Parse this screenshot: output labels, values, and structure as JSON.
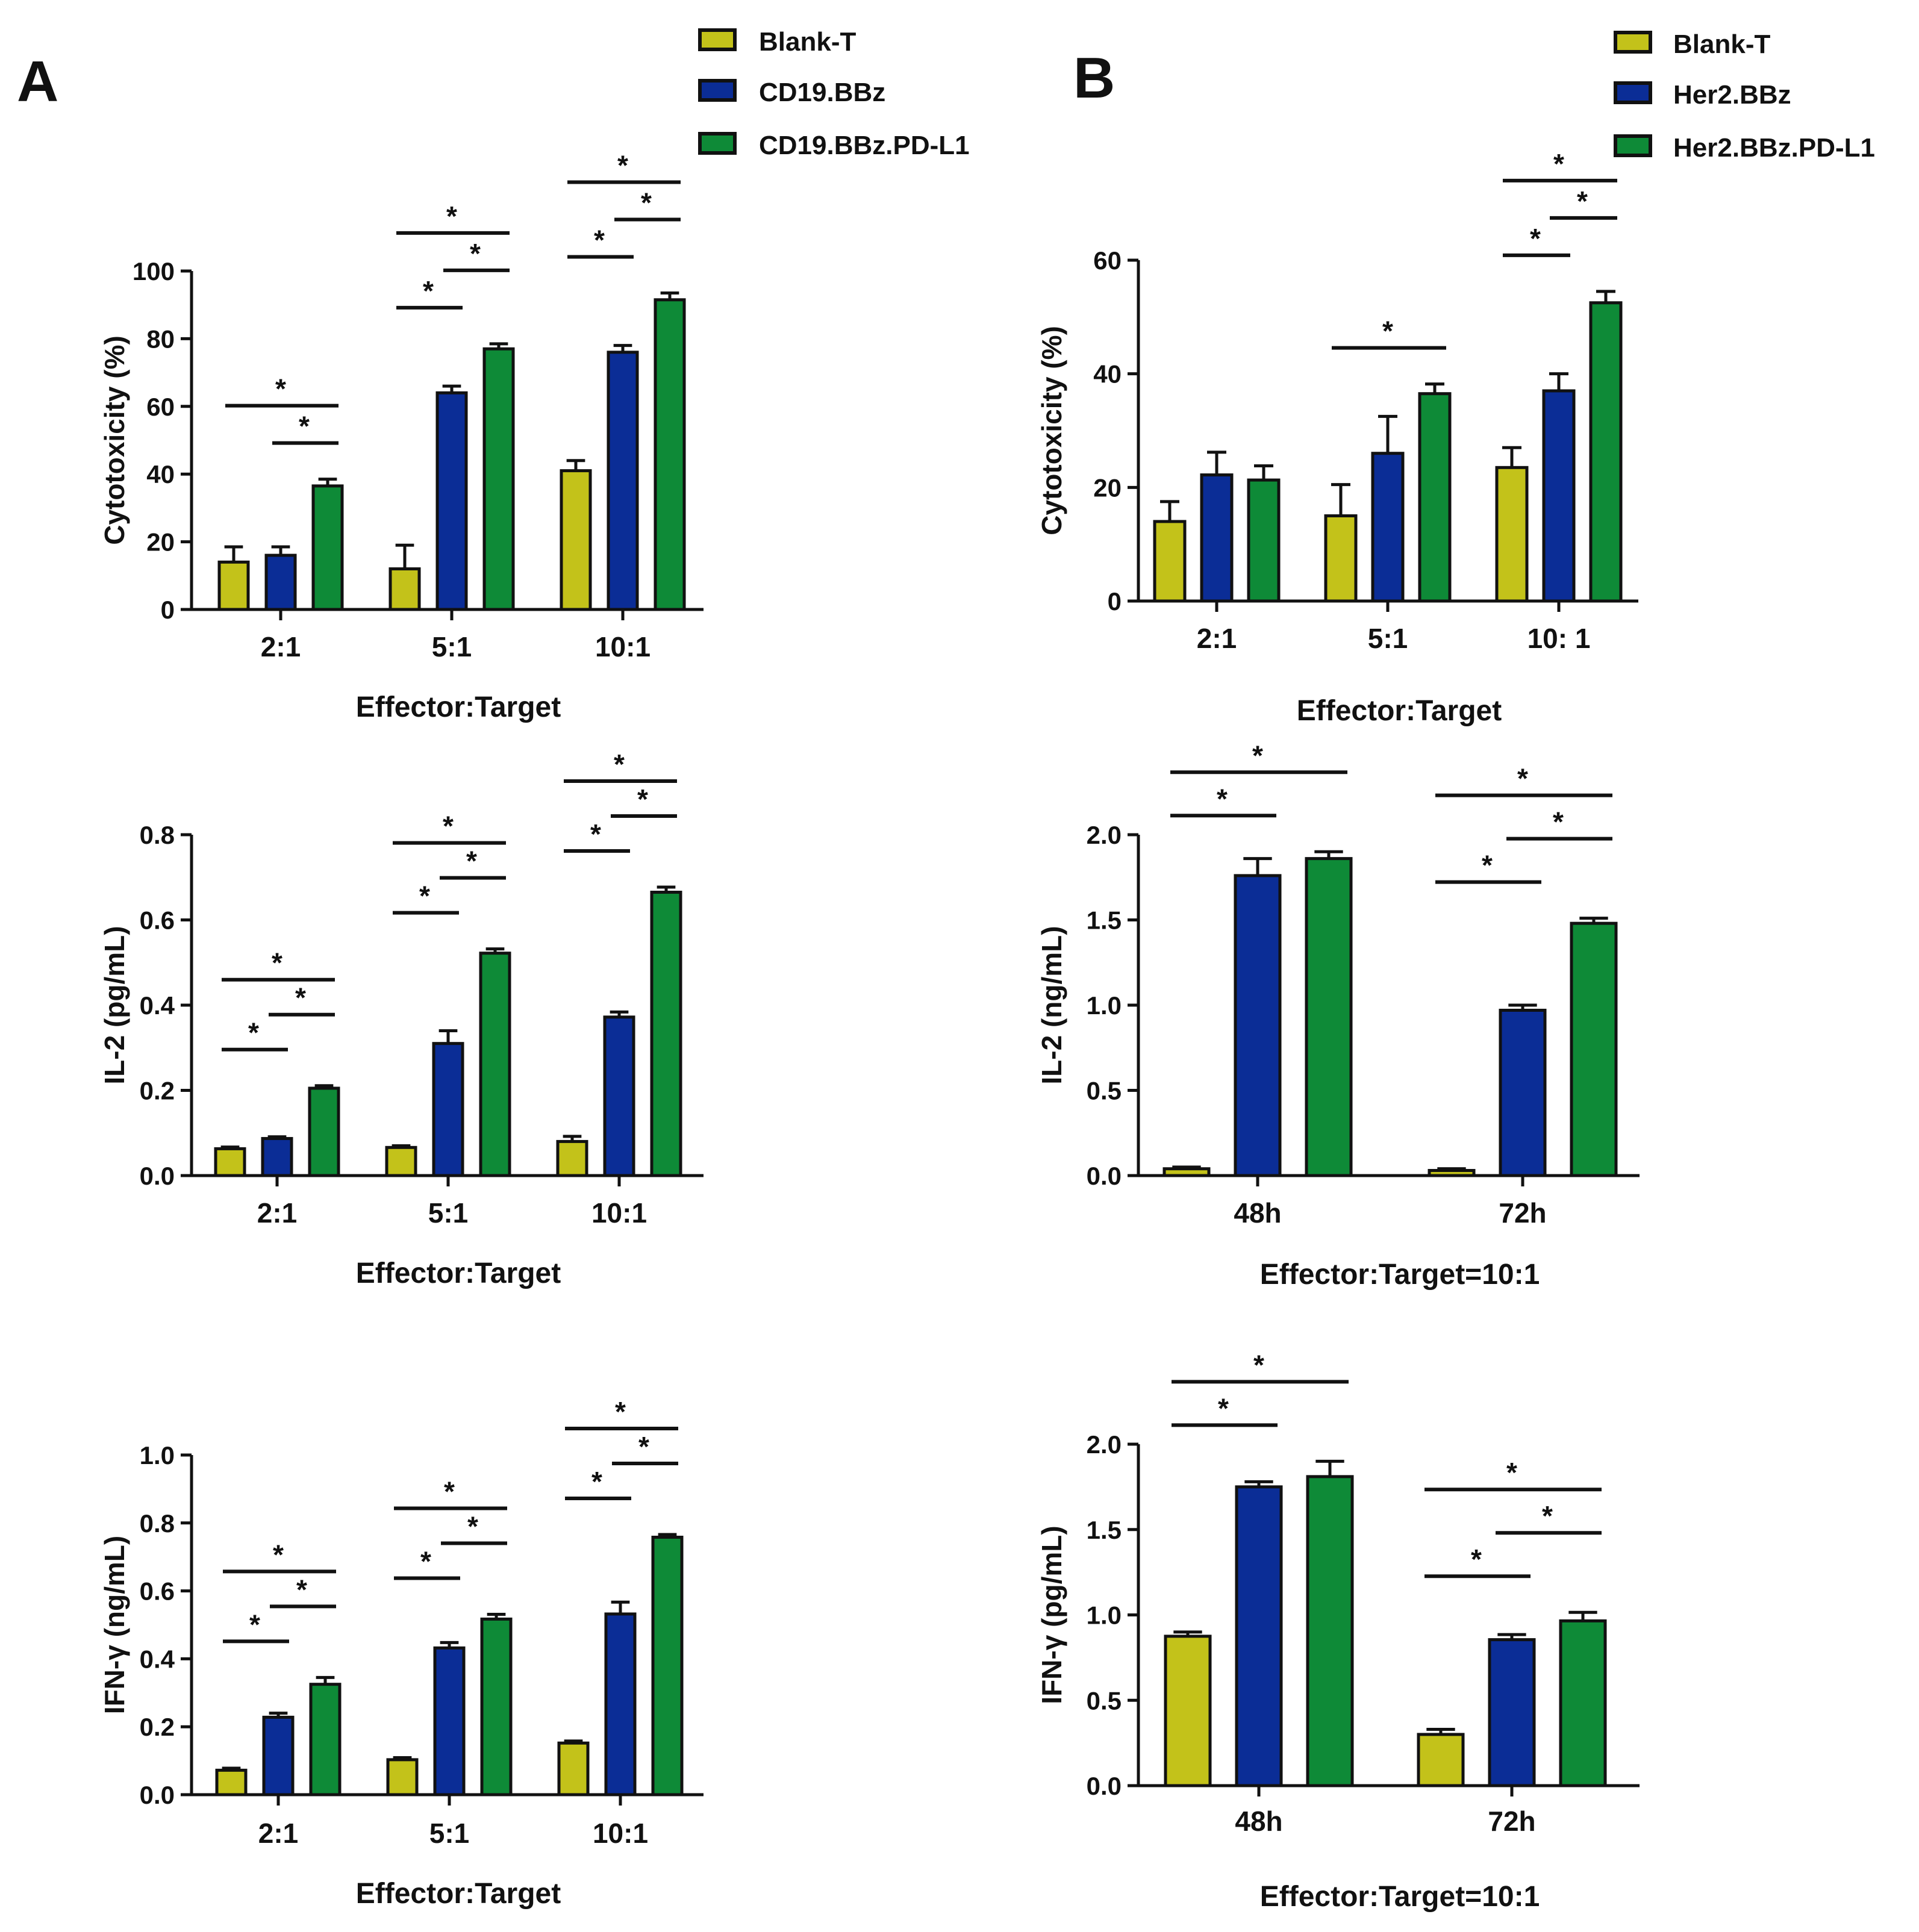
{
  "colors": {
    "blank": "#c3c21a",
    "cd19": "#0b2d96",
    "pdl1": "#0e8a37",
    "axis": "#111111"
  },
  "panels": [
    {
      "key": "A",
      "label": "A"
    },
    {
      "key": "B",
      "label": "B"
    }
  ],
  "legends": [
    {
      "panel": "A",
      "items": [
        {
          "label": "Blank-T",
          "color": "#c3c21a"
        },
        {
          "label": "CD19.BBz",
          "color": "#0b2d96"
        },
        {
          "label": "CD19.BBz.PD-L1",
          "color": "#0e8a37"
        }
      ]
    },
    {
      "panel": "B",
      "items": [
        {
          "label": "Blank-T",
          "color": "#c3c21a"
        },
        {
          "label": "Her2.BBz",
          "color": "#0b2d96"
        },
        {
          "label": "Her2.BBz.PD-L1",
          "color": "#0e8a37"
        }
      ]
    }
  ],
  "chart_data": [
    {
      "id": "A-cytotoxicity",
      "panel": "A",
      "type": "bar",
      "ylabel": "Cytotoxicity (%)",
      "xlabel": "Effector:Target",
      "ylim": [
        0,
        100
      ],
      "yticks": [
        "0",
        "20",
        "40",
        "60",
        "80",
        "100"
      ],
      "categories": [
        "2:1",
        "5:1",
        "10:1"
      ],
      "series": [
        {
          "name": "Blank-T",
          "values": [
            14,
            12,
            41
          ],
          "errors": [
            4.5,
            7,
            3
          ]
        },
        {
          "name": "CD19.BBz",
          "values": [
            16,
            64,
            76
          ],
          "errors": [
            2.5,
            2,
            2
          ]
        },
        {
          "name": "CD19.BBz.PD-L1",
          "values": [
            36.5,
            77,
            91.5
          ],
          "errors": [
            2,
            1.5,
            2
          ]
        }
      ],
      "significance": [
        {
          "category": "2:1",
          "from": "Blank-T",
          "to": "CD19.BBz.PD-L1",
          "label": "*"
        },
        {
          "category": "2:1",
          "from": "CD19.BBz",
          "to": "CD19.BBz.PD-L1",
          "label": "*"
        },
        {
          "category": "5:1",
          "from": "Blank-T",
          "to": "CD19.BBz.PD-L1",
          "label": "*"
        },
        {
          "category": "5:1",
          "from": "CD19.BBz",
          "to": "CD19.BBz.PD-L1",
          "label": "*"
        },
        {
          "category": "5:1",
          "from": "Blank-T",
          "to": "CD19.BBz",
          "label": "*"
        },
        {
          "category": "10:1",
          "from": "Blank-T",
          "to": "CD19.BBz.PD-L1",
          "label": "*"
        },
        {
          "category": "10:1",
          "from": "CD19.BBz",
          "to": "CD19.BBz.PD-L1",
          "label": "*"
        },
        {
          "category": "10:1",
          "from": "Blank-T",
          "to": "CD19.BBz",
          "label": "*"
        }
      ]
    },
    {
      "id": "A-il2",
      "panel": "A",
      "type": "bar",
      "ylabel": "IL-2 (pg/mL)",
      "xlabel": "Effector:Target",
      "ylim": [
        0,
        0.8
      ],
      "yticks": [
        "0.0",
        "0.2",
        "0.4",
        "0.6",
        "0.8"
      ],
      "categories": [
        "2:1",
        "5:1",
        "10:1"
      ],
      "series": [
        {
          "name": "Blank-T",
          "values": [
            0.063,
            0.066,
            0.08
          ],
          "errors": [
            0.004,
            0.004,
            0.012
          ]
        },
        {
          "name": "CD19.BBz",
          "values": [
            0.087,
            0.31,
            0.372
          ],
          "errors": [
            0.004,
            0.03,
            0.012
          ]
        },
        {
          "name": "CD19.BBz.PD-L1",
          "values": [
            0.205,
            0.522,
            0.665
          ],
          "errors": [
            0.006,
            0.01,
            0.012
          ]
        }
      ],
      "significance": [
        {
          "category": "2:1",
          "from": "Blank-T",
          "to": "CD19.BBz.PD-L1",
          "label": "*"
        },
        {
          "category": "2:1",
          "from": "CD19.BBz",
          "to": "CD19.BBz.PD-L1",
          "label": "*"
        },
        {
          "category": "2:1",
          "from": "Blank-T",
          "to": "CD19.BBz",
          "label": "*"
        },
        {
          "category": "5:1",
          "from": "Blank-T",
          "to": "CD19.BBz.PD-L1",
          "label": "*"
        },
        {
          "category": "5:1",
          "from": "CD19.BBz",
          "to": "CD19.BBz.PD-L1",
          "label": "*"
        },
        {
          "category": "5:1",
          "from": "Blank-T",
          "to": "CD19.BBz",
          "label": "*"
        },
        {
          "category": "10:1",
          "from": "Blank-T",
          "to": "CD19.BBz.PD-L1",
          "label": "*"
        },
        {
          "category": "10:1",
          "from": "CD19.BBz",
          "to": "CD19.BBz.PD-L1",
          "label": "*"
        },
        {
          "category": "10:1",
          "from": "Blank-T",
          "to": "CD19.BBz",
          "label": "*"
        }
      ]
    },
    {
      "id": "A-ifng",
      "panel": "A",
      "type": "bar",
      "ylabel": "IFN-γ (ng/mL)",
      "xlabel": "Effector:Target",
      "ylim": [
        0,
        1.0
      ],
      "yticks": [
        "0.0",
        "0.2",
        "0.4",
        "0.6",
        "0.8",
        "1.0"
      ],
      "categories": [
        "2:1",
        "5:1",
        "10:1"
      ],
      "series": [
        {
          "name": "Blank-T",
          "values": [
            0.072,
            0.103,
            0.152
          ],
          "errors": [
            0.006,
            0.006,
            0.006
          ]
        },
        {
          "name": "CD19.BBz",
          "values": [
            0.228,
            0.432,
            0.532
          ],
          "errors": [
            0.012,
            0.016,
            0.035
          ]
        },
        {
          "name": "CD19.BBz.PD-L1",
          "values": [
            0.325,
            0.517,
            0.758
          ],
          "errors": [
            0.02,
            0.014,
            0.008
          ]
        }
      ],
      "significance": [
        {
          "category": "2:1",
          "from": "Blank-T",
          "to": "CD19.BBz.PD-L1",
          "label": "*"
        },
        {
          "category": "2:1",
          "from": "CD19.BBz",
          "to": "CD19.BBz.PD-L1",
          "label": "*"
        },
        {
          "category": "2:1",
          "from": "Blank-T",
          "to": "CD19.BBz",
          "label": "*"
        },
        {
          "category": "5:1",
          "from": "Blank-T",
          "to": "CD19.BBz.PD-L1",
          "label": "*"
        },
        {
          "category": "5:1",
          "from": "CD19.BBz",
          "to": "CD19.BBz.PD-L1",
          "label": "*"
        },
        {
          "category": "5:1",
          "from": "Blank-T",
          "to": "CD19.BBz",
          "label": "*"
        },
        {
          "category": "10:1",
          "from": "Blank-T",
          "to": "CD19.BBz.PD-L1",
          "label": "*"
        },
        {
          "category": "10:1",
          "from": "CD19.BBz",
          "to": "CD19.BBz.PD-L1",
          "label": "*"
        },
        {
          "category": "10:1",
          "from": "Blank-T",
          "to": "CD19.BBz",
          "label": "*"
        }
      ]
    },
    {
      "id": "B-cytotoxicity",
      "panel": "B",
      "type": "bar",
      "ylabel": "Cytotoxicity (%)",
      "xlabel": "Effector:Target",
      "ylim": [
        0,
        60
      ],
      "yticks": [
        "0",
        "20",
        "40",
        "60"
      ],
      "categories": [
        "2:1",
        "5:1",
        "10: 1"
      ],
      "series": [
        {
          "name": "Blank-T",
          "values": [
            14,
            15,
            23.5
          ],
          "errors": [
            3.5,
            5.5,
            3.5
          ]
        },
        {
          "name": "Her2.BBz",
          "values": [
            22.2,
            26,
            37
          ],
          "errors": [
            4,
            6.5,
            3
          ]
        },
        {
          "name": "Her2.BBz.PD-L1",
          "values": [
            21.3,
            36.5,
            52.5
          ],
          "errors": [
            2.5,
            1.7,
            2
          ]
        }
      ],
      "significance": [
        {
          "category": "5:1",
          "from": "Blank-T",
          "to": "Her2.BBz.PD-L1",
          "label": "*"
        },
        {
          "category": "10: 1",
          "from": "Blank-T",
          "to": "Her2.BBz.PD-L1",
          "label": "*"
        },
        {
          "category": "10: 1",
          "from": "Her2.BBz",
          "to": "Her2.BBz.PD-L1",
          "label": "*"
        },
        {
          "category": "10: 1",
          "from": "Blank-T",
          "to": "Her2.BBz",
          "label": "*"
        }
      ]
    },
    {
      "id": "B-il2",
      "panel": "B",
      "type": "bar",
      "ylabel": "IL-2 (ng/mL)",
      "xlabel": "Effector:Target=10:1",
      "ylim": [
        0,
        2.0
      ],
      "yticks": [
        "0.0",
        "0.5",
        "1.0",
        "1.5",
        "2.0"
      ],
      "categories": [
        "48h",
        "72h"
      ],
      "series": [
        {
          "name": "Blank-T",
          "values": [
            0.04,
            0.03
          ],
          "errors": [
            0.01,
            0.01
          ]
        },
        {
          "name": "Her2.BBz",
          "values": [
            1.76,
            0.97
          ],
          "errors": [
            0.1,
            0.03
          ]
        },
        {
          "name": "Her2.BBz.PD-L1",
          "values": [
            1.86,
            1.48
          ],
          "errors": [
            0.04,
            0.03
          ]
        }
      ],
      "significance": [
        {
          "category": "48h",
          "from": "Blank-T",
          "to": "Her2.BBz.PD-L1",
          "label": "*"
        },
        {
          "category": "48h",
          "from": "Blank-T",
          "to": "Her2.BBz",
          "label": "*"
        },
        {
          "category": "72h",
          "from": "Blank-T",
          "to": "Her2.BBz.PD-L1",
          "label": "*"
        },
        {
          "category": "72h",
          "from": "Her2.BBz",
          "to": "Her2.BBz.PD-L1",
          "label": "*"
        },
        {
          "category": "72h",
          "from": "Blank-T",
          "to": "Her2.BBz",
          "label": "*"
        }
      ]
    },
    {
      "id": "B-ifng",
      "panel": "B",
      "type": "bar",
      "ylabel": "IFN-γ (pg/mL)",
      "xlabel": "Effector:Target=10:1",
      "ylim": [
        0,
        2.0
      ],
      "yticks": [
        "0.0",
        "0.5",
        "1.0",
        "1.5",
        "2.0"
      ],
      "categories": [
        "48h",
        "72h"
      ],
      "series": [
        {
          "name": "Blank-T",
          "values": [
            0.875,
            0.3
          ],
          "errors": [
            0.025,
            0.03
          ]
        },
        {
          "name": "Her2.BBz",
          "values": [
            1.75,
            0.855
          ],
          "errors": [
            0.03,
            0.03
          ]
        },
        {
          "name": "Her2.BBz.PD-L1",
          "values": [
            1.81,
            0.965
          ],
          "errors": [
            0.09,
            0.05
          ]
        }
      ],
      "significance": [
        {
          "category": "48h",
          "from": "Blank-T",
          "to": "Her2.BBz.PD-L1",
          "label": "*"
        },
        {
          "category": "48h",
          "from": "Blank-T",
          "to": "Her2.BBz",
          "label": "*"
        },
        {
          "category": "72h",
          "from": "Blank-T",
          "to": "Her2.BBz.PD-L1",
          "label": "*"
        },
        {
          "category": "72h",
          "from": "Her2.BBz",
          "to": "Her2.BBz.PD-L1",
          "label": "*"
        },
        {
          "category": "72h",
          "from": "Blank-T",
          "to": "Her2.BBz",
          "label": "*"
        }
      ]
    }
  ]
}
